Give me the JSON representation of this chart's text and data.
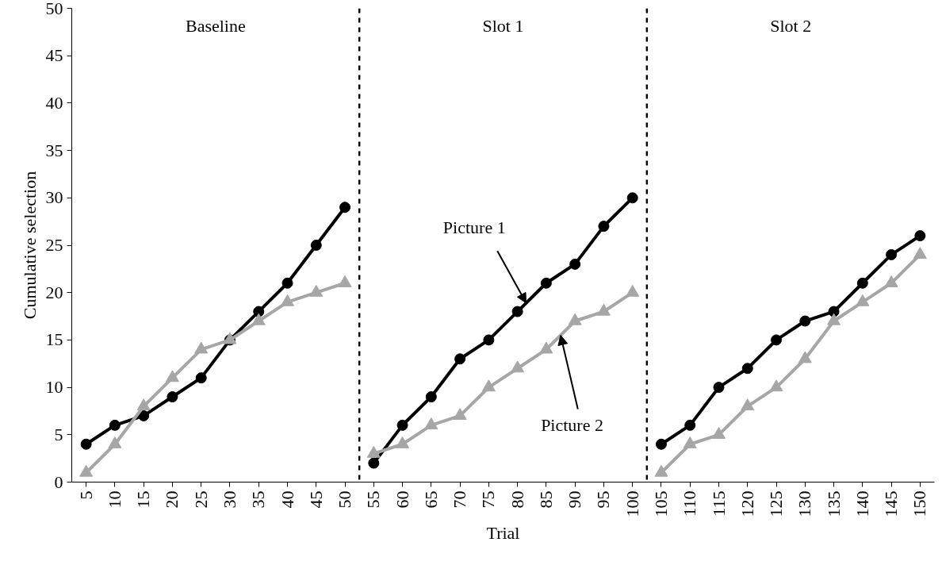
{
  "chart_data": {
    "type": "line",
    "xlabel": "Trial",
    "ylabel": "Cumulative selection",
    "xlim": [
      2.5,
      152.5
    ],
    "ylim": [
      0,
      50
    ],
    "xticks": [
      5,
      10,
      15,
      20,
      25,
      30,
      35,
      40,
      45,
      50,
      55,
      60,
      65,
      70,
      75,
      80,
      85,
      90,
      95,
      100,
      105,
      110,
      115,
      120,
      125,
      130,
      135,
      140,
      145,
      150
    ],
    "yticks": [
      0,
      5,
      10,
      15,
      20,
      25,
      30,
      35,
      40,
      45,
      50
    ],
    "grid": false,
    "line_style": "solid",
    "series": [
      {
        "color": "#000000",
        "marker": "circle",
        "x": [
          5,
          10,
          15,
          20,
          25,
          30,
          35,
          40,
          45,
          50
        ],
        "values": [
          4,
          6,
          7,
          9,
          11,
          15,
          18,
          21,
          25,
          29
        ]
      },
      {
        "color": "#a6a6a6",
        "marker": "triangle",
        "x": [
          5,
          10,
          15,
          20,
          25,
          30,
          35,
          40,
          45,
          50
        ],
        "values": [
          1,
          4,
          8,
          11,
          14,
          15,
          17,
          19,
          20,
          21
        ]
      },
      {
        "color": "#000000",
        "marker": "circle",
        "x": [
          55,
          60,
          65,
          70,
          75,
          80,
          85,
          90,
          95,
          100
        ],
        "values": [
          2,
          6,
          9,
          13,
          15,
          18,
          21,
          23,
          27,
          30
        ]
      },
      {
        "color": "#a6a6a6",
        "marker": "triangle",
        "x": [
          55,
          60,
          65,
          70,
          75,
          80,
          85,
          90,
          95,
          100
        ],
        "values": [
          3,
          4,
          6,
          7,
          10,
          12,
          14,
          17,
          18,
          20
        ]
      },
      {
        "color": "#000000",
        "marker": "circle",
        "x": [
          105,
          110,
          115,
          120,
          125,
          130,
          135,
          140,
          145,
          150
        ],
        "values": [
          4,
          6,
          10,
          12,
          15,
          17,
          18,
          21,
          24,
          26
        ]
      },
      {
        "color": "#a6a6a6",
        "marker": "triangle",
        "x": [
          105,
          110,
          115,
          120,
          125,
          130,
          135,
          140,
          145,
          150
        ],
        "values": [
          1,
          4,
          5,
          8,
          10,
          13,
          17,
          19,
          21,
          24
        ]
      }
    ],
    "ref_lines": [
      {
        "axis": "x",
        "value": 52.5,
        "color": "#000000",
        "line_style": "dashed"
      },
      {
        "axis": "x",
        "value": 102.5,
        "color": "#000000",
        "line_style": "dashed"
      }
    ],
    "annotations": [
      "Baseline",
      "Slot 1",
      "Slot 2",
      {
        "text": "Picture 1",
        "x": 81.5,
        "y": 18.9
      },
      {
        "text": "Picture 2",
        "x": 87.5,
        "y": 15.5
      }
    ]
  }
}
